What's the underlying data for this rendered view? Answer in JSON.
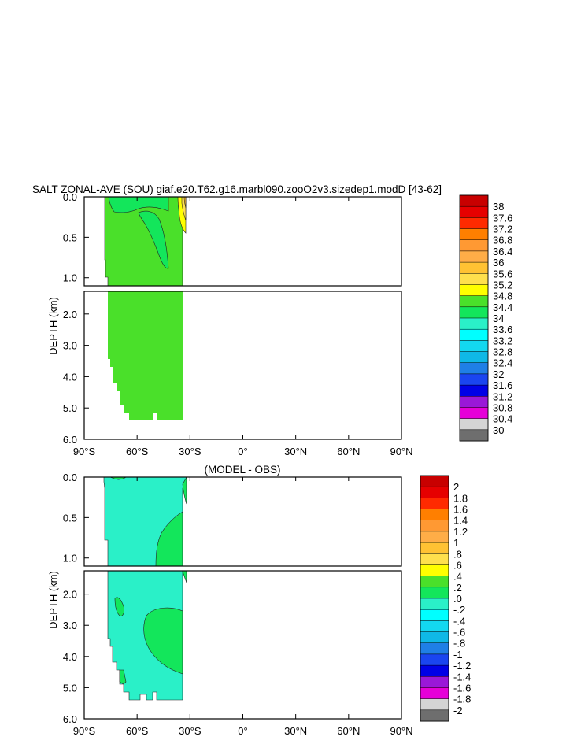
{
  "title": "SALT ZONAL-AVE (SOU) giaf.e20.T62.g16.marbl090.zooO2v3.sizedep1.modD [43-62]",
  "chart_data": [
    {
      "type": "heatmap",
      "title": "SALT ZONAL-AVE (SOU) giaf.e20.T62.g16.marbl090.zooO2v3.sizedep1.modD [43-62]",
      "ylabel": "DEPTH (km)",
      "x_tick_labels": [
        "90°S",
        "60°S",
        "30°S",
        "0°",
        "30°N",
        "60°N",
        "90°N"
      ],
      "x_tick_values": [
        -90,
        -60,
        -30,
        0,
        30,
        60,
        90
      ],
      "upper_y_tick_labels": [
        "0.0",
        "0.5",
        "1.0"
      ],
      "upper_y_tick_values": [
        0,
        0.5,
        1.0
      ],
      "lower_y_tick_labels": [
        "2.0",
        "3.0",
        "4.0",
        "5.0",
        "6.0"
      ],
      "lower_y_tick_values": [
        2,
        3,
        4,
        5,
        6
      ],
      "xlim": [
        -90,
        90
      ],
      "ylim_upper": [
        0,
        1.1
      ],
      "ylim_lower": [
        1.1,
        6
      ],
      "colorbar_labels": [
        "38",
        "37.6",
        "37.2",
        "36.8",
        "36.4",
        "36",
        "35.6",
        "35.2",
        "34.8",
        "34.4",
        "34",
        "33.6",
        "33.2",
        "32.8",
        "32.4",
        "32",
        "31.6",
        "31.2",
        "30.8",
        "30.4",
        "30"
      ],
      "colorbar_colors": [
        "#c80000",
        "#e60000",
        "#ff2a00",
        "#ff7f00",
        "#ff9933",
        "#ffad47",
        "#ffc233",
        "#ffe04d",
        "#ffff00",
        "#4ae02a",
        "#13e65b",
        "#2af0c8",
        "#00ffff",
        "#13d8f0",
        "#0fb8e6",
        "#1f7fe6",
        "#1a45f0",
        "#0000e6",
        "#9a18d8",
        "#e600d8",
        "#d4d4d4",
        "#6e6e6e"
      ]
    },
    {
      "type": "heatmap",
      "title": "(MODEL - OBS)",
      "ylabel": "DEPTH (km)",
      "x_tick_labels": [
        "90°S",
        "60°S",
        "30°S",
        "0°",
        "30°N",
        "60°N",
        "90°N"
      ],
      "x_tick_values": [
        -90,
        -60,
        -30,
        0,
        30,
        60,
        90
      ],
      "upper_y_tick_labels": [
        "0.0",
        "0.5",
        "1.0"
      ],
      "upper_y_tick_values": [
        0,
        0.5,
        1.0
      ],
      "lower_y_tick_labels": [
        "2.0",
        "3.0",
        "4.0",
        "5.0",
        "6.0"
      ],
      "lower_y_tick_values": [
        2,
        3,
        4,
        5,
        6
      ],
      "xlim": [
        -90,
        90
      ],
      "ylim_upper": [
        0,
        1.1
      ],
      "ylim_lower": [
        1.1,
        6
      ],
      "colorbar_labels": [
        "2",
        "1.8",
        "1.6",
        "1.4",
        "1.2",
        "1",
        ".8",
        ".6",
        ".4",
        ".2",
        ".0",
        "-.2",
        "-.4",
        "-.6",
        "-.8",
        "-1",
        "-1.2",
        "-1.4",
        "-1.6",
        "-1.8",
        "-2"
      ],
      "colorbar_colors": [
        "#c80000",
        "#e60000",
        "#ff2a00",
        "#ff7f00",
        "#ff9933",
        "#ffad47",
        "#ffc233",
        "#ffe04d",
        "#ffff00",
        "#4ae02a",
        "#13e65b",
        "#2af0c8",
        "#00ffff",
        "#13d8f0",
        "#0fb8e6",
        "#1f7fe6",
        "#1a45f0",
        "#0000e6",
        "#9a18d8",
        "#e600d8",
        "#d4d4d4",
        "#6e6e6e"
      ]
    }
  ]
}
